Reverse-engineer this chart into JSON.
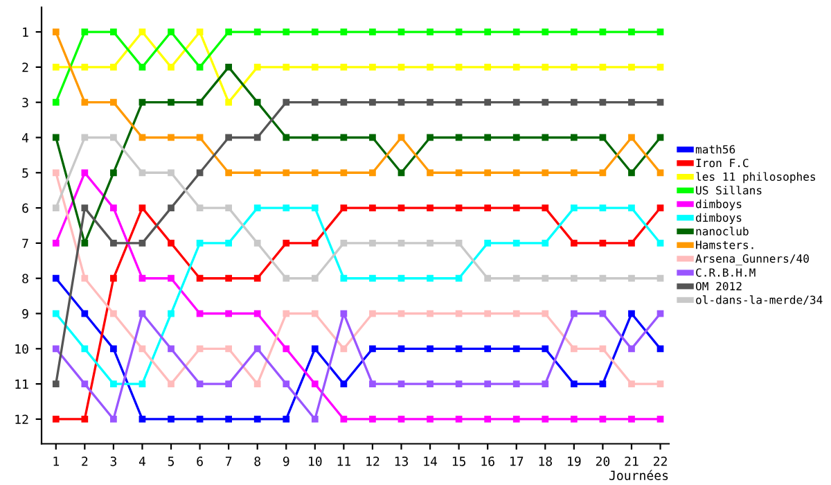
{
  "chart_data": {
    "type": "line",
    "xlabel": "Journées",
    "x": [
      1,
      2,
      3,
      4,
      5,
      6,
      7,
      8,
      9,
      10,
      11,
      12,
      13,
      14,
      15,
      16,
      17,
      18,
      19,
      20,
      21,
      22
    ],
    "xlim": [
      0.5,
      22.3
    ],
    "xticks": [
      1,
      2,
      3,
      4,
      5,
      6,
      7,
      8,
      9,
      10,
      11,
      12,
      13,
      14,
      15,
      16,
      17,
      18,
      19,
      20,
      21,
      22
    ],
    "ylim": [
      12.7,
      0.3
    ],
    "yticks": [
      1,
      2,
      3,
      4,
      5,
      6,
      7,
      8,
      9,
      10,
      11,
      12
    ],
    "marker": "square",
    "legend": "right",
    "grid": false,
    "series": [
      {
        "name": "math56",
        "color": "#0000ff",
        "values": [
          8,
          9,
          10,
          12,
          12,
          12,
          12,
          12,
          12,
          10,
          11,
          10,
          10,
          10,
          10,
          10,
          10,
          10,
          11,
          11,
          9,
          10
        ]
      },
      {
        "name": "Iron F.C",
        "color": "#ff0000",
        "values": [
          12,
          12,
          8,
          6,
          7,
          8,
          8,
          8,
          7,
          7,
          6,
          6,
          6,
          6,
          6,
          6,
          6,
          6,
          7,
          7,
          7,
          6
        ]
      },
      {
        "name": "les 11 philosophes",
        "color": "#ffff00",
        "values": [
          2,
          2,
          2,
          1,
          2,
          1,
          3,
          2,
          2,
          2,
          2,
          2,
          2,
          2,
          2,
          2,
          2,
          2,
          2,
          2,
          2,
          2
        ]
      },
      {
        "name": "US Sillans",
        "color": "#00ff00",
        "values": [
          3,
          1,
          1,
          2,
          1,
          2,
          1,
          1,
          1,
          1,
          1,
          1,
          1,
          1,
          1,
          1,
          1,
          1,
          1,
          1,
          1,
          1
        ]
      },
      {
        "name": "dimboys",
        "color": "#ff00ff",
        "values": [
          7,
          5,
          6,
          8,
          8,
          9,
          9,
          9,
          10,
          11,
          12,
          12,
          12,
          12,
          12,
          12,
          12,
          12,
          12,
          12,
          12,
          12
        ]
      },
      {
        "name": "dimboys",
        "color": "#00ffff",
        "values": [
          9,
          10,
          11,
          11,
          9,
          7,
          7,
          6,
          6,
          6,
          8,
          8,
          8,
          8,
          8,
          7,
          7,
          7,
          6,
          6,
          6,
          7
        ]
      },
      {
        "name": "nanoclub",
        "color": "#006600",
        "values": [
          4,
          7,
          5,
          3,
          3,
          3,
          2,
          3,
          4,
          4,
          4,
          4,
          5,
          4,
          4,
          4,
          4,
          4,
          4,
          4,
          5,
          4
        ]
      },
      {
        "name": "Hamsters.",
        "color": "#ff9900",
        "values": [
          1,
          3,
          3,
          4,
          4,
          4,
          5,
          5,
          5,
          5,
          5,
          5,
          4,
          5,
          5,
          5,
          5,
          5,
          5,
          5,
          4,
          5
        ]
      },
      {
        "name": "Arsena_Gunners/40",
        "color": "#ffbbbb",
        "values": [
          5,
          8,
          9,
          10,
          11,
          10,
          10,
          11,
          9,
          9,
          10,
          9,
          9,
          9,
          9,
          9,
          9,
          9,
          10,
          10,
          11,
          11
        ]
      },
      {
        "name": "C.R.B.H.M",
        "color": "#9955ff",
        "values": [
          10,
          11,
          12,
          9,
          10,
          11,
          11,
          10,
          11,
          12,
          9,
          11,
          11,
          11,
          11,
          11,
          11,
          11,
          9,
          9,
          10,
          9
        ]
      },
      {
        "name": "OM 2012",
        "color": "#555555",
        "values": [
          11,
          6,
          7,
          7,
          6,
          5,
          4,
          4,
          3,
          3,
          3,
          3,
          3,
          3,
          3,
          3,
          3,
          3,
          3,
          3,
          3,
          3
        ]
      },
      {
        "name": "ol-dans-la-merde/34",
        "color": "#c8c8c8",
        "values": [
          6,
          4,
          4,
          5,
          5,
          6,
          6,
          7,
          8,
          8,
          7,
          7,
          7,
          7,
          7,
          8,
          8,
          8,
          8,
          8,
          8,
          8
        ]
      }
    ]
  }
}
